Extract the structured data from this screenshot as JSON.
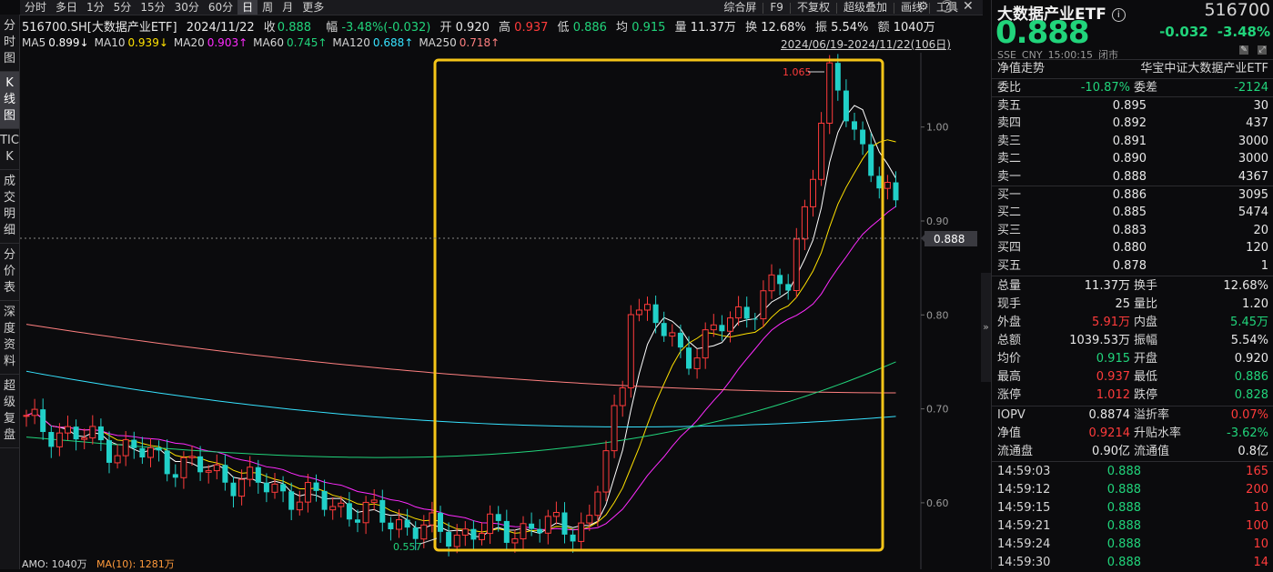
{
  "toolbar": {
    "left": [
      "分时",
      "多日",
      "1分",
      "5分",
      "15分",
      "30分",
      "60分",
      "日",
      "周",
      "月",
      "更多"
    ],
    "active": "日",
    "right": [
      "综合屏",
      "F9",
      "不复权",
      "超级叠加",
      "画线",
      "工具"
    ]
  },
  "side_tabs": [
    "分时图",
    "K线图",
    "TICK",
    "成交明细",
    "分价表",
    "深度资料",
    "超级复盘"
  ],
  "side_active": "K线图",
  "header": {
    "symbol": "516700.SH[大数据产业ETF]",
    "date": "2024/11/22",
    "close_label": "收",
    "close": "0.888",
    "chg_label": "幅",
    "chg": "-3.48%(-0.032)",
    "open_label": "开",
    "open": "0.920",
    "high_label": "高",
    "high": "0.937",
    "low_label": "低",
    "low": "0.886",
    "avg_label": "均",
    "avg": "0.915",
    "vol_label": "量",
    "vol": "11.37万",
    "turn_label": "换",
    "turn": "12.68%",
    "amp_label": "振",
    "amp": "5.54%",
    "amt_label": "额",
    "amt": "1040万"
  },
  "ma_row": [
    {
      "label": "MA5",
      "value": "0.899↓",
      "color": "#ffffff"
    },
    {
      "label": "MA10",
      "value": "0.939↓",
      "color": "#ffe100"
    },
    {
      "label": "MA20",
      "value": "0.903↑",
      "color": "#ff2bff"
    },
    {
      "label": "MA60",
      "value": "0.745↑",
      "color": "#21d47b"
    },
    {
      "label": "MA120",
      "value": "0.688↑",
      "color": "#37e3ff"
    },
    {
      "label": "MA250",
      "value": "0.718↑",
      "color": "#ff8080"
    }
  ],
  "range": "2024/06/19-2024/11/22(106日)",
  "chart_labels": {
    "high_mark": "1.065",
    "low_mark": "0.557",
    "current_tag": "0.888",
    "y_ticks": [
      "1.00",
      "0.90",
      "0.80",
      "0.70",
      "0.60"
    ],
    "amo": "AMO: 1040万",
    "amo_ma": "MA(10): 1281万"
  },
  "colors": {
    "up": "#ff3b3b",
    "down": "#21d0c8",
    "highlight": "#f5c518"
  },
  "panel": {
    "title": "大数据产业ETF",
    "code": "516700",
    "price": "0.888",
    "chg": "-0.032",
    "chg_pct": "-3.48%",
    "meta": [
      "SSE",
      "CNY",
      "15:00:15",
      "闭市"
    ],
    "nav_label": "净值走势",
    "index_name": "华宝中证大数据产业ETF",
    "weibi_label": "委比",
    "weibi": "-10.87%",
    "weicha_label": "委差",
    "weicha": "-2124",
    "asks": [
      {
        "label": "卖五",
        "price": "0.895",
        "vol": "30"
      },
      {
        "label": "卖四",
        "price": "0.892",
        "vol": "437"
      },
      {
        "label": "卖三",
        "price": "0.891",
        "vol": "3000"
      },
      {
        "label": "卖二",
        "price": "0.890",
        "vol": "3000"
      },
      {
        "label": "卖一",
        "price": "0.888",
        "vol": "4367"
      }
    ],
    "bids": [
      {
        "label": "买一",
        "price": "0.886",
        "vol": "3095"
      },
      {
        "label": "买二",
        "price": "0.885",
        "vol": "5474"
      },
      {
        "label": "买三",
        "price": "0.883",
        "vol": "20"
      },
      {
        "label": "买四",
        "price": "0.880",
        "vol": "120"
      },
      {
        "label": "买五",
        "price": "0.878",
        "vol": "1"
      }
    ],
    "stats": [
      {
        "k1": "总量",
        "v1": "11.37万",
        "c1": "white",
        "k2": "换手",
        "v2": "12.68%",
        "c2": "white"
      },
      {
        "k1": "现手",
        "v1": "25",
        "c1": "white",
        "k2": "量比",
        "v2": "1.20",
        "c2": "white"
      },
      {
        "k1": "外盘",
        "v1": "5.91万",
        "c1": "red",
        "k2": "内盘",
        "v2": "5.45万",
        "c2": "green"
      },
      {
        "k1": "总额",
        "v1": "1039.53万",
        "c1": "white",
        "k2": "振幅",
        "v2": "5.54%",
        "c2": "white"
      },
      {
        "k1": "均价",
        "v1": "0.915",
        "c1": "green",
        "k2": "开盘",
        "v2": "0.920",
        "c2": "white"
      },
      {
        "k1": "最高",
        "v1": "0.937",
        "c1": "red",
        "k2": "最低",
        "v2": "0.886",
        "c2": "green"
      },
      {
        "k1": "涨停",
        "v1": "1.012",
        "c1": "red",
        "k2": "跌停",
        "v2": "0.828",
        "c2": "green"
      }
    ],
    "stats2": [
      {
        "k1": "IOPV",
        "v1": "0.8874",
        "c1": "white",
        "k2": "溢折率",
        "v2": "0.07%",
        "c2": "red"
      },
      {
        "k1": "净值",
        "v1": "0.9214",
        "c1": "red",
        "k2": "升贴水率",
        "v2": "-3.62%",
        "c2": "green"
      },
      {
        "k1": "流通盘",
        "v1": "0.90亿",
        "c1": "white",
        "k2": "流通值",
        "v2": "0.8亿",
        "c2": "white"
      }
    ],
    "ticks": [
      {
        "time": "14:59:03",
        "price": "0.888",
        "vol": "165"
      },
      {
        "time": "14:59:12",
        "price": "0.888",
        "vol": "200"
      },
      {
        "time": "14:59:15",
        "price": "0.888",
        "vol": "10"
      },
      {
        "time": "14:59:21",
        "price": "0.888",
        "vol": "100"
      },
      {
        "time": "14:59:24",
        "price": "0.888",
        "vol": "10"
      },
      {
        "time": "14:59:30",
        "price": "0.888",
        "vol": "14"
      }
    ]
  }
}
